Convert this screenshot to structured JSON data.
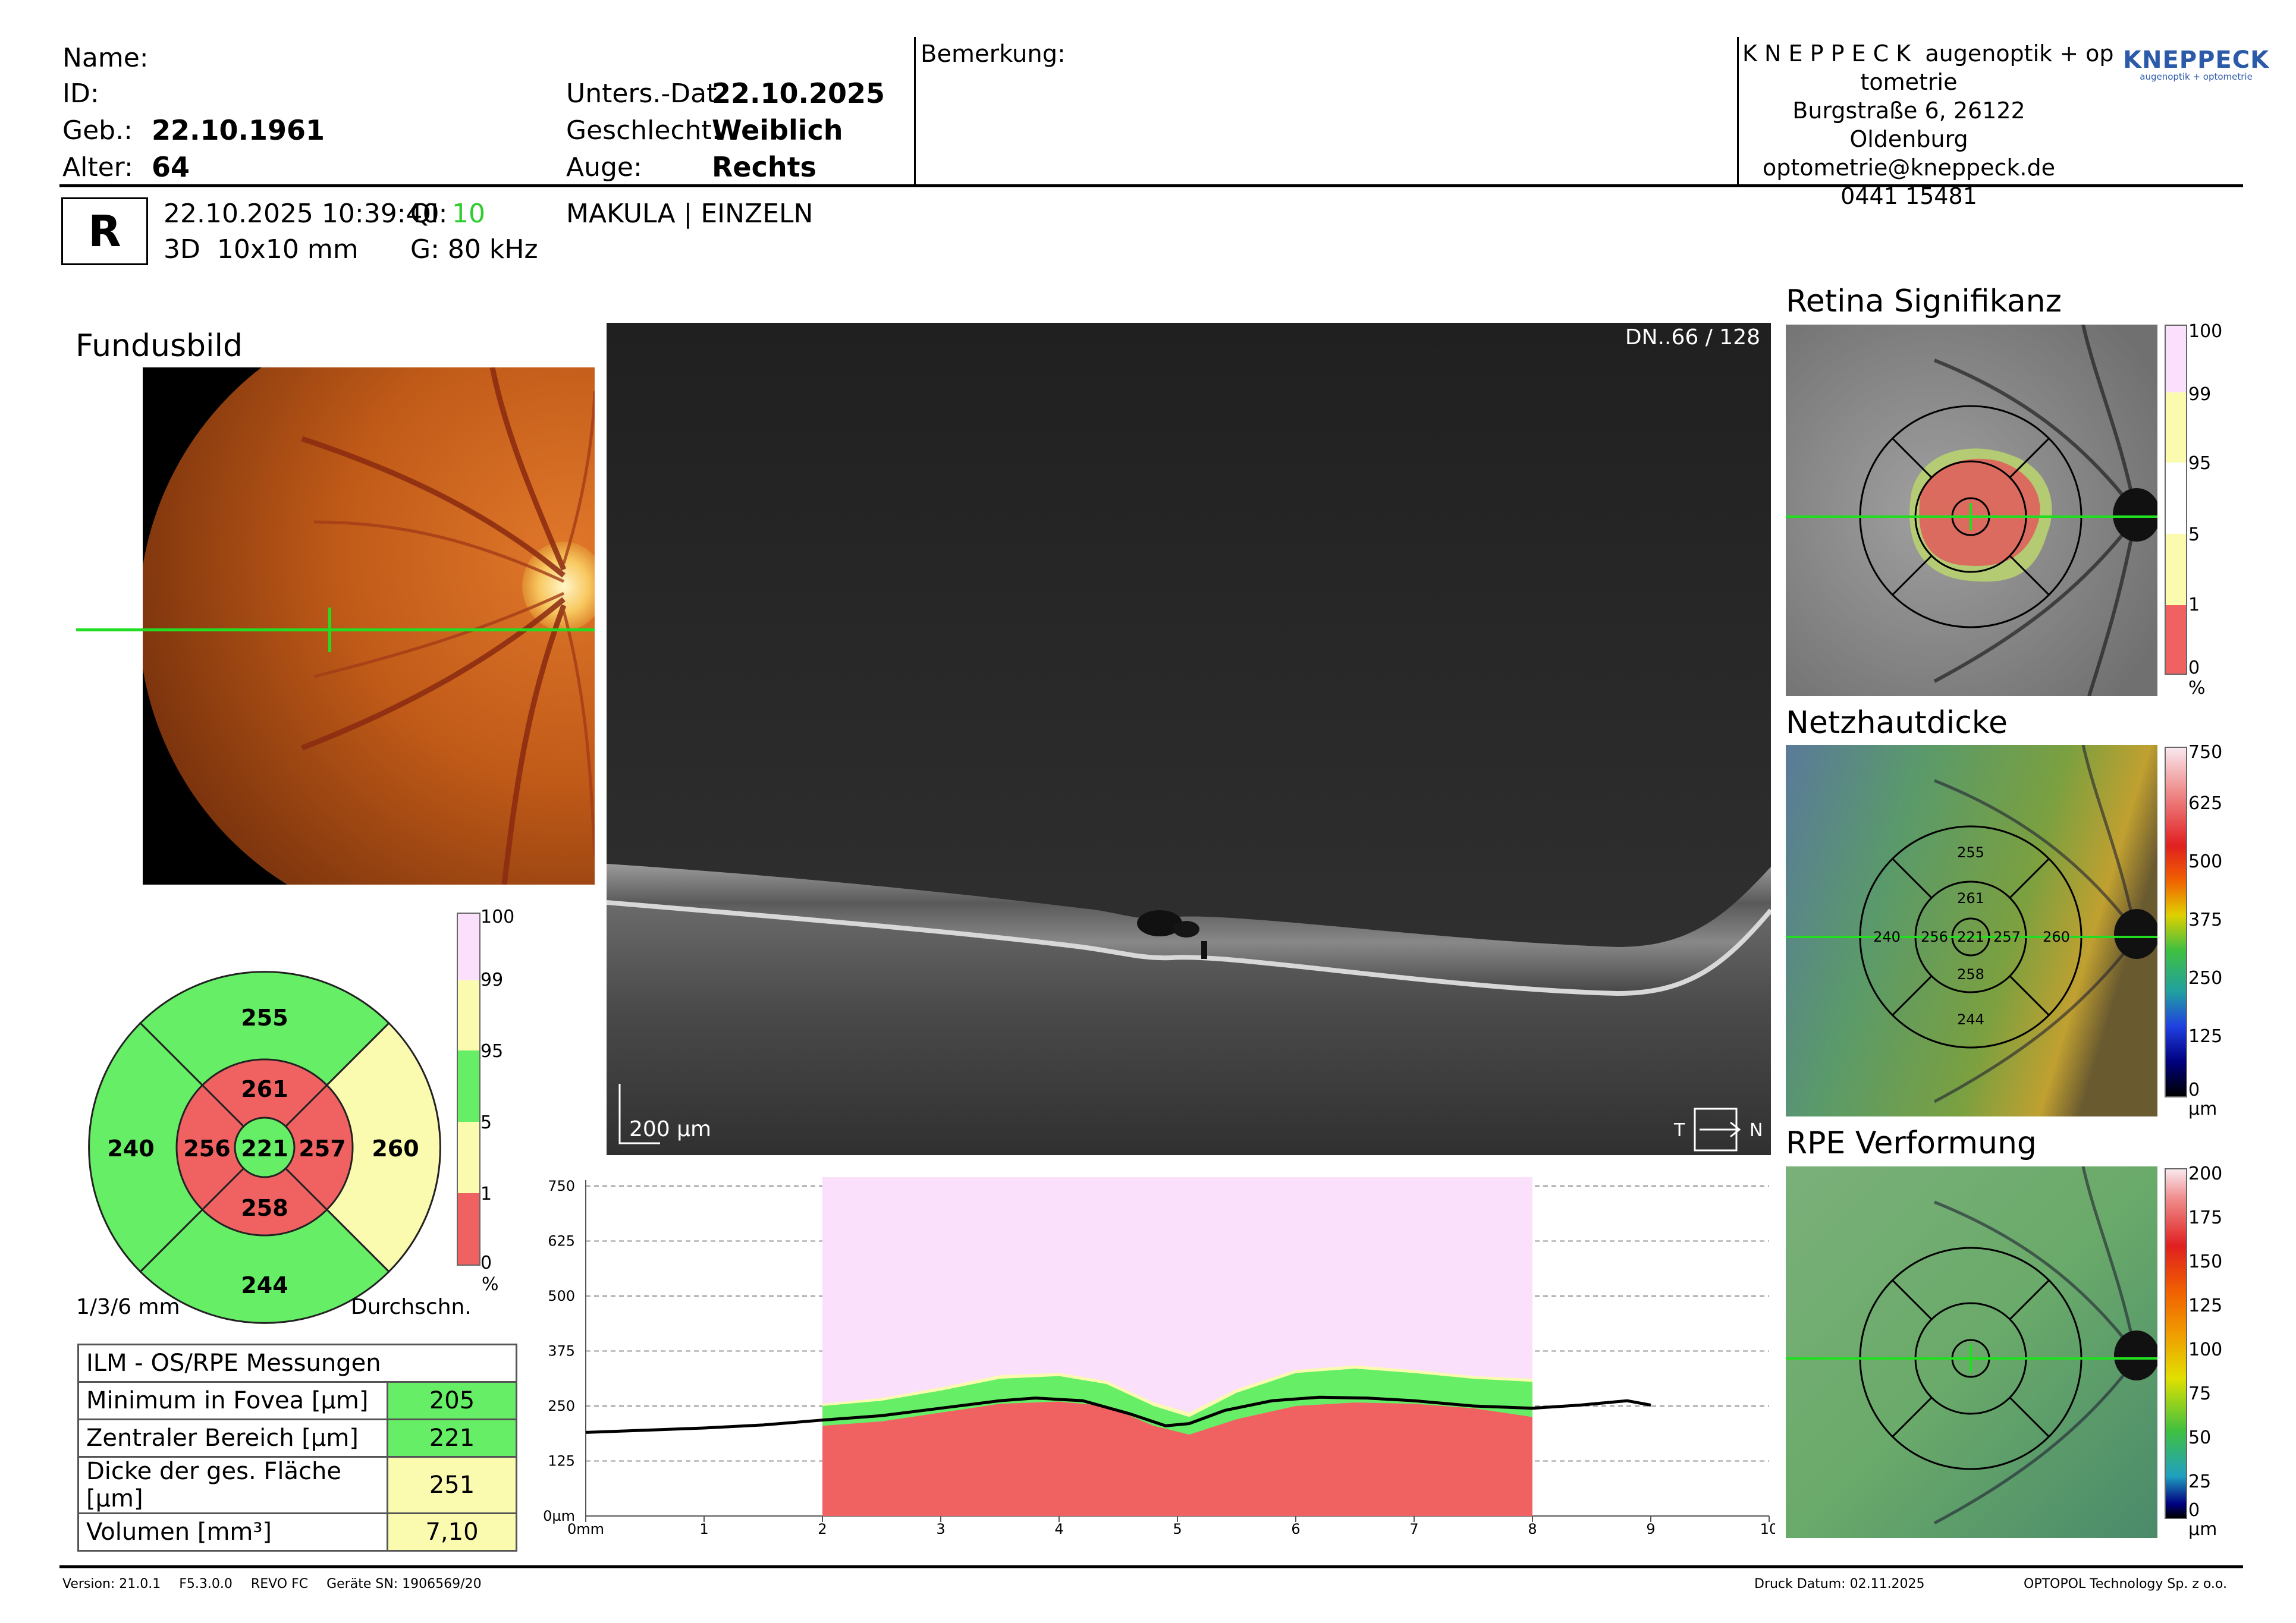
{
  "header": {
    "name_label": "Name:",
    "id_label": "ID:",
    "dob_label": "Geb.:",
    "dob": "22.10.1961",
    "age_label": "Alter:",
    "age": "64",
    "exam_date_label": "Unters.-Dat",
    "exam_date": "22.10.2025",
    "sex_label": "Geschlecht:",
    "sex": "Weiblich",
    "eye_label": "Auge:",
    "eye": "Rechts",
    "remark_label": "Bemerkung:",
    "clinic_line1": "K N E P P E C K  augenoptik + op",
    "clinic_line2": "tometrie",
    "clinic_address": "Burgstraße 6, 26122 Oldenburg",
    "clinic_email": "optometrie@kneppeck.de",
    "clinic_phone": "0441 15481",
    "logo_main": "KNEPPECK",
    "logo_sub": "augenoptik + optometrie"
  },
  "scan_info": {
    "eye_letter": "R",
    "datetime": "22.10.2025 10:39:40",
    "qi_label": "QI:",
    "qi": "10",
    "mode": "3D  10x10 mm",
    "speed": "G: 80 kHz",
    "protocol": "MAKULA | EINZELN"
  },
  "fundus": {
    "title": "Fundusbild"
  },
  "oct": {
    "slice": "DN..66 / 128",
    "scale": "200 µm",
    "dir_t": "T",
    "dir_n": "N"
  },
  "sector_map": {
    "outer": {
      "superior": "255",
      "temporal": "240",
      "nasal": "260",
      "inferior": "244"
    },
    "inner": {
      "superior": "261",
      "temporal": "256",
      "nasal": "257",
      "inferior": "258"
    },
    "center": "221",
    "diameters": "1/3/6 mm",
    "avg_label": "Durchschn.",
    "scale_labels": [
      "100",
      "99",
      "95",
      "5",
      "1",
      "0",
      "%"
    ],
    "colors": {
      "red": "#f06262",
      "green": "#66ee66",
      "yellow": "#fbfbb0",
      "pink": "#fbe0fb",
      "white": "#ffffff"
    }
  },
  "measurements": {
    "title": "ILM - OS/RPE Messungen",
    "rows": [
      {
        "label": "Minimum in Fovea [µm]",
        "value": "205",
        "color": "#66ee66"
      },
      {
        "label": "Zentraler Bereich [µm]",
        "value": "221",
        "color": "#66ee66"
      },
      {
        "label": "Dicke der ges. Fläche [µm]",
        "value": "251",
        "color": "#fbfbb0"
      },
      {
        "label": "Volumen [mm³]",
        "value": "7,10",
        "color": "#fbfbb0"
      }
    ]
  },
  "chart_data": {
    "type": "line",
    "y_ticks": [
      "750",
      "625",
      "500",
      "375",
      "250",
      "125",
      "0µm"
    ],
    "x_ticks": [
      "0mm",
      "1",
      "2",
      "3",
      "4",
      "5",
      "6",
      "7",
      "8",
      "9",
      "10"
    ],
    "xlim": [
      0,
      10
    ],
    "ylim": [
      0,
      750
    ],
    "normative_band_x": [
      2,
      8
    ],
    "thickness_x": [
      0,
      0.5,
      1,
      1.5,
      2,
      2.5,
      3,
      3.5,
      3.8,
      4.2,
      4.6,
      4.9,
      5.1,
      5.4,
      5.8,
      6.2,
      6.6,
      7,
      7.5,
      8,
      8.4,
      8.8,
      9
    ],
    "thickness_y": [
      190,
      195,
      200,
      207,
      218,
      228,
      245,
      262,
      268,
      262,
      232,
      205,
      210,
      240,
      262,
      270,
      268,
      262,
      250,
      245,
      252,
      262,
      252
    ],
    "red_upper": [
      205,
      215,
      235,
      255,
      260,
      250,
      205,
      185,
      220,
      250,
      258,
      255,
      245,
      225
    ],
    "green_upper": [
      250,
      262,
      285,
      312,
      318,
      300,
      250,
      225,
      280,
      325,
      335,
      325,
      312,
      305
    ],
    "yellow_upper": [
      255,
      268,
      292,
      320,
      325,
      307,
      258,
      235,
      288,
      332,
      342,
      332,
      318,
      312
    ],
    "band_x": [
      2,
      2.5,
      3,
      3.5,
      4,
      4.4,
      4.8,
      5.1,
      5.5,
      6,
      6.5,
      7,
      7.5,
      8
    ]
  },
  "maps": {
    "significance": {
      "title": "Retina Signifikanz",
      "scale": [
        "100",
        "99",
        "95",
        "5",
        "1",
        "0",
        "%"
      ]
    },
    "thickness": {
      "title": "Netzhautdicke",
      "scale": [
        "750",
        "625",
        "500",
        "375",
        "250",
        "125",
        "0",
        "µm"
      ],
      "values": {
        "outer_sup": "255",
        "inner_sup": "261",
        "outer_tmp": "240",
        "inner_tmp": "256",
        "center": "221",
        "inner_nas": "257",
        "outer_nas": "260",
        "inner_inf": "258",
        "outer_inf": "244"
      }
    },
    "rpe": {
      "title": "RPE Verformung",
      "scale": [
        "200",
        "175",
        "150",
        "125",
        "100",
        "75",
        "50",
        "25",
        "0",
        "µm"
      ]
    }
  },
  "footer": {
    "version": "Version: 21.0.1",
    "fw": "F5.3.0.0",
    "device": "REVO FC",
    "serial": "Geräte SN: 1906569/20",
    "print_date": "Druck Datum: 02.11.2025",
    "company": "OPTOPOL Technology Sp. z o.o."
  }
}
